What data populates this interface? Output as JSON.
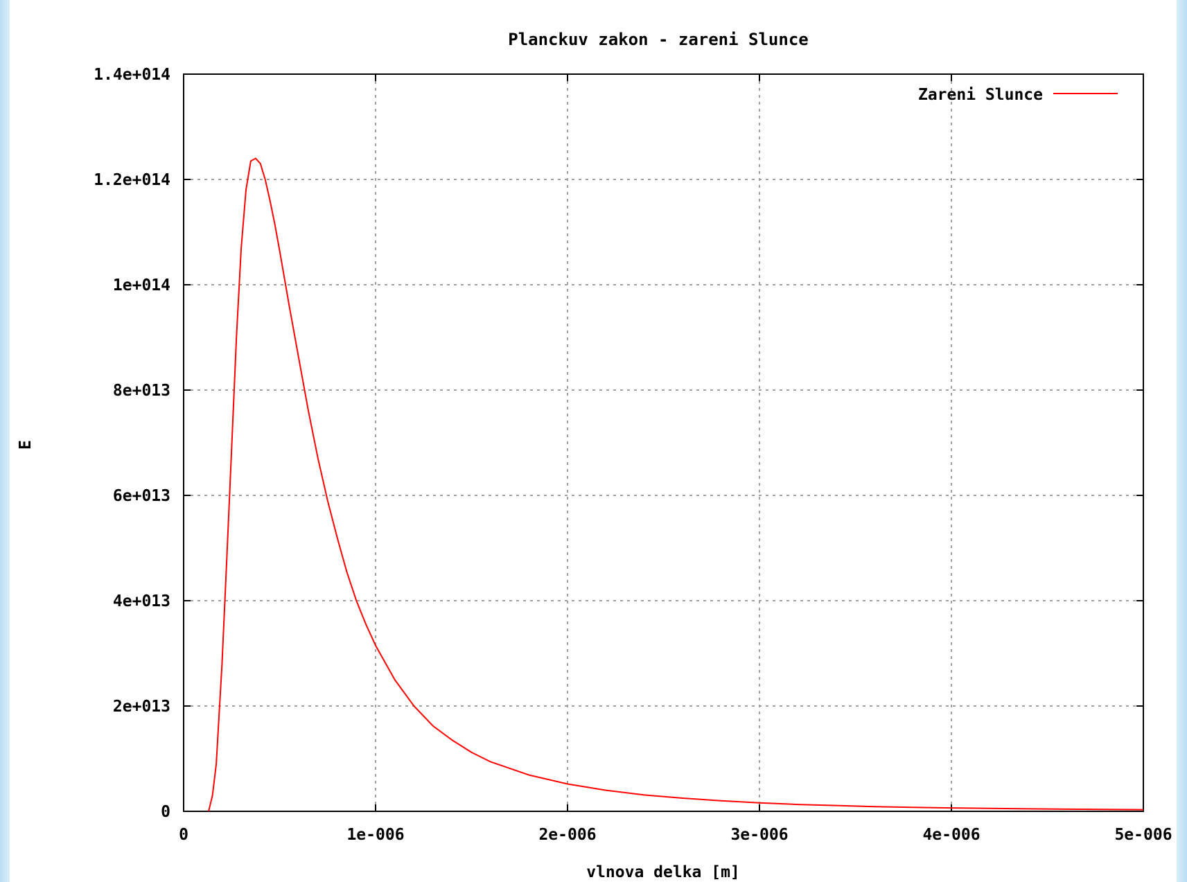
{
  "chart_data": {
    "type": "line",
    "title": "Planckuv zakon - zareni Slunce",
    "xlabel": "vlnova delka [m]",
    "ylabel": "E",
    "xlim": [
      0,
      5e-06
    ],
    "ylim": [
      0,
      140000000000000.0
    ],
    "x_tick_labels": [
      "0",
      "1e-006",
      "2e-006",
      "3e-006",
      "4e-006",
      "5e-006"
    ],
    "x_tick_values": [
      0,
      1e-06,
      2e-06,
      3e-06,
      4e-06,
      5e-06
    ],
    "y_tick_labels": [
      "0",
      "2e+013",
      "4e+013",
      "6e+013",
      "8e+013",
      "1e+014",
      "1.2e+014",
      "1.4e+014"
    ],
    "y_tick_values": [
      0,
      20000000000000.0,
      40000000000000.0,
      60000000000000.0,
      80000000000000.0,
      100000000000000.0,
      120000000000000.0,
      140000000000000.0
    ],
    "grid": true,
    "legend_position": "top-right",
    "series": [
      {
        "name": "Zareni Slunce",
        "color": "#ff0000",
        "x": [
          1.3e-07,
          1.5e-07,
          1.7e-07,
          2e-07,
          2.25e-07,
          2.5e-07,
          2.75e-07,
          3e-07,
          3.25e-07,
          3.5e-07,
          3.75e-07,
          4e-07,
          4.25e-07,
          4.5e-07,
          4.75e-07,
          5e-07,
          5.5e-07,
          6e-07,
          6.5e-07,
          7e-07,
          7.5e-07,
          8e-07,
          8.5e-07,
          9e-07,
          9.5e-07,
          1e-06,
          1.1e-06,
          1.2e-06,
          1.3e-06,
          1.4e-06,
          1.5e-06,
          1.6e-06,
          1.8e-06,
          2e-06,
          2.2e-06,
          2.4e-06,
          2.6e-06,
          2.8e-06,
          3e-06,
          3.2e-06,
          3.4e-06,
          3.6e-06,
          3.8e-06,
          4e-06,
          4.2e-06,
          4.4e-06,
          4.6e-06,
          4.8e-06,
          5e-06
        ],
        "values": [
          0.0,
          3000000000000.0,
          9000000000000.0,
          28000000000000.0,
          48000000000000.0,
          69000000000000.0,
          90000000000000.0,
          107000000000000.0,
          118000000000000.0,
          123500000000000.0,
          124000000000000.0,
          123000000000000.0,
          120000000000000.0,
          116000000000000.0,
          111500000000000.0,
          106500000000000.0,
          96000000000000.0,
          86000000000000.0,
          76000000000000.0,
          67000000000000.0,
          59000000000000.0,
          52000000000000.0,
          45500000000000.0,
          40000000000000.0,
          35500000000000.0,
          31500000000000.0,
          25000000000000.0,
          20000000000000.0,
          16200000000000.0,
          13500000000000.0,
          11200000000000.0,
          9400000000000.0,
          6900000000000.0,
          5200000000000.0,
          4000000000000.0,
          3100000000000.0,
          2500000000000.0,
          2000000000000.0,
          1600000000000.0,
          1300000000000.0,
          1100000000000.0,
          900000000000.0,
          760000000000.0,
          640000000000.0,
          550000000000.0,
          470000000000.0,
          410000000000.0,
          360000000000.0,
          320000000000.0
        ]
      }
    ]
  }
}
